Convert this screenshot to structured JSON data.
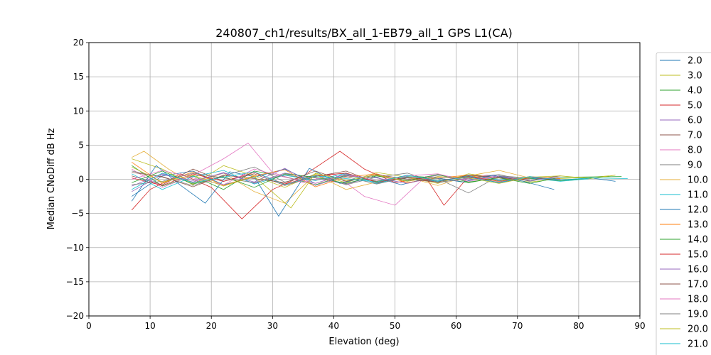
{
  "chart_data": {
    "type": "line",
    "title": "240807_ch1/results/BX_all_1-EB79_all_1 GPS L1(CA)",
    "xlabel": "Elevation (deg)",
    "ylabel": "Median CNoDiff dB Hz",
    "xlim": [
      0,
      90
    ],
    "ylim": [
      -20,
      20
    ],
    "xticks": [
      "0",
      "10",
      "20",
      "30",
      "40",
      "50",
      "60",
      "70",
      "80",
      "90"
    ],
    "yticks": [
      "−20",
      "−15",
      "−10",
      "−5",
      "0",
      "5",
      "10",
      "15",
      "20"
    ],
    "grid": true,
    "legend_placement": "right, outside plot",
    "colors": [
      "#1f77b4",
      "#bcbd22",
      "#2ca02c",
      "#d62728",
      "#9467bd",
      "#8c564b",
      "#e377c2",
      "#7f7f7f",
      "#e5ae38",
      "#17becf",
      "#1f77b4",
      "#ff7f0e",
      "#2ca02c",
      "#d62728",
      "#9467bd",
      "#8c564b",
      "#e377c2",
      "#7f7f7f",
      "#bcbd22",
      "#17becf"
    ],
    "series": [
      {
        "name": "2.0",
        "x": [
          7,
          12,
          17,
          22,
          27,
          32,
          37,
          42,
          47,
          52,
          57,
          62,
          67,
          72,
          77,
          82,
          86
        ],
        "y": [
          -2.5,
          0.5,
          1.2,
          -0.8,
          0.3,
          1.5,
          -0.6,
          0.8,
          -0.4,
          0.2,
          -0.3,
          0.5,
          -0.2,
          0.3,
          -0.1,
          0.2,
          -0.3
        ]
      },
      {
        "name": "3.0",
        "x": [
          7,
          12,
          17,
          22,
          27,
          32,
          37,
          42,
          47,
          52,
          57,
          62,
          67,
          72,
          77,
          82,
          85
        ],
        "y": [
          3.0,
          1.5,
          -0.8,
          2.0,
          0.5,
          -1.2,
          0.8,
          -0.5,
          1.0,
          0.3,
          -0.6,
          0.8,
          0.2,
          -0.4,
          0.1,
          0.3,
          0.5
        ]
      },
      {
        "name": "4.0",
        "x": [
          7,
          12,
          17,
          22,
          27,
          32,
          37,
          42,
          47,
          52,
          57,
          62,
          67,
          72,
          77,
          82
        ],
        "y": [
          2.0,
          -1.0,
          0.5,
          -1.5,
          1.2,
          0.4,
          -0.8,
          0.6,
          -0.3,
          0.5,
          0.2,
          -0.5,
          0.3,
          0.1,
          -0.2,
          0.1
        ]
      },
      {
        "name": "5.0",
        "x": [
          7,
          10,
          15,
          20,
          25,
          30,
          35,
          41,
          45,
          50,
          55,
          58,
          62,
          67,
          72,
          77
        ],
        "y": [
          -4.5,
          -1.5,
          0.8,
          -1.2,
          -5.8,
          -1.5,
          0.5,
          4.1,
          1.5,
          -0.5,
          0.3,
          -3.8,
          0.4,
          -0.3,
          0.2,
          -0.1
        ]
      },
      {
        "name": "6.0",
        "x": [
          7,
          12,
          17,
          22,
          27,
          32,
          37,
          42,
          47,
          52,
          57,
          62,
          67,
          72,
          77
        ],
        "y": [
          -1.0,
          0.8,
          -0.4,
          1.0,
          -0.6,
          0.9,
          0.2,
          -0.7,
          0.5,
          -0.3,
          0.6,
          0.1,
          -0.4,
          0.3,
          0.0
        ]
      },
      {
        "name": "7.0",
        "x": [
          7,
          12,
          17,
          22,
          27,
          32,
          37,
          42,
          47,
          52,
          57,
          62,
          67,
          72,
          77
        ],
        "y": [
          0.5,
          -0.8,
          1.5,
          -0.3,
          0.8,
          -0.9,
          0.4,
          1.2,
          -0.5,
          0.2,
          -0.4,
          0.6,
          0.3,
          -0.2,
          0.5
        ]
      },
      {
        "name": "8.0",
        "x": [
          7,
          12,
          17,
          22,
          26,
          30,
          35,
          40,
          45,
          50,
          55,
          60,
          65,
          70
        ],
        "y": [
          1.5,
          -1.2,
          0.6,
          3.0,
          5.3,
          1.0,
          -0.5,
          0.8,
          -2.5,
          -3.8,
          0.4,
          -0.2,
          0.6,
          0.1
        ]
      },
      {
        "name": "9.0",
        "x": [
          7,
          12,
          17,
          22,
          27,
          32,
          37,
          42,
          47,
          52,
          57,
          62,
          67,
          72,
          76
        ],
        "y": [
          1.2,
          0.3,
          -0.9,
          0.5,
          1.8,
          -0.4,
          0.6,
          -0.8,
          0.3,
          0.9,
          -0.5,
          0.2,
          0.7,
          -0.3,
          0.4
        ]
      },
      {
        "name": "10.0",
        "x": [
          7,
          9,
          13,
          17,
          22,
          27,
          32,
          37,
          42,
          47,
          52,
          57,
          62,
          67,
          72
        ],
        "y": [
          3.2,
          4.1,
          1.5,
          -0.6,
          0.9,
          -1.8,
          -3.5,
          0.7,
          -1.5,
          -0.4,
          0.3,
          -0.9,
          0.5,
          1.3,
          0.2
        ]
      },
      {
        "name": "11.0",
        "x": [
          7,
          12,
          17,
          22,
          27,
          32,
          37,
          42,
          47,
          52,
          57,
          62,
          67,
          72,
          77,
          82
        ],
        "y": [
          0.8,
          -1.5,
          0.4,
          1.3,
          -0.7,
          0.6,
          -0.2,
          0.9,
          -0.6,
          0.4,
          -0.3,
          0.5,
          -0.1,
          0.2,
          -0.3,
          0.1
        ]
      },
      {
        "name": "12.0",
        "x": [
          7,
          11,
          15,
          19,
          23,
          27,
          31,
          36,
          41,
          46,
          51,
          56,
          61,
          66,
          71,
          76
        ],
        "y": [
          -3.2,
          2.0,
          -0.9,
          -3.5,
          1.1,
          0.4,
          -5.4,
          1.6,
          -0.6,
          0.5,
          -0.8,
          0.3,
          -0.4,
          0.6,
          -0.3,
          -1.5
        ]
      },
      {
        "name": "13.0",
        "x": [
          7,
          12,
          17,
          22,
          27,
          32,
          37,
          42,
          47,
          52,
          57,
          62,
          67,
          72,
          77
        ],
        "y": [
          2.5,
          -0.6,
          1.1,
          -0.9,
          0.5,
          1.4,
          -1.1,
          0.3,
          0.8,
          -0.5,
          0.2,
          0.6,
          -0.3,
          0.4,
          0.1
        ]
      },
      {
        "name": "14.0",
        "x": [
          7,
          12,
          17,
          22,
          27,
          32,
          37,
          42,
          47,
          52,
          57,
          62,
          67,
          72,
          77,
          87
        ],
        "y": [
          -0.5,
          1.2,
          -0.7,
          0.4,
          -1.2,
          0.8,
          0.3,
          -0.6,
          0.5,
          -0.2,
          0.7,
          -0.4,
          0.2,
          -0.6,
          0.3,
          0.4
        ]
      },
      {
        "name": "15.0",
        "x": [
          7,
          12,
          17,
          22,
          27,
          32,
          37,
          42,
          47,
          52,
          57,
          62,
          67,
          72
        ],
        "y": [
          0.2,
          -0.9,
          0.8,
          -0.3,
          1.0,
          -0.7,
          0.5,
          0.9,
          -0.4,
          0.3,
          -0.2,
          0.4,
          -0.5,
          0.2
        ]
      },
      {
        "name": "16.0",
        "x": [
          7,
          12,
          17,
          22,
          27,
          32,
          37,
          42,
          47,
          52,
          57,
          62,
          67,
          72,
          77
        ],
        "y": [
          -1.8,
          0.7,
          -0.2,
          0.9,
          -0.4,
          1.6,
          -0.9,
          0.5,
          0.2,
          -0.6,
          0.4,
          -0.1,
          0.5,
          -0.2,
          0.3
        ]
      },
      {
        "name": "17.0",
        "x": [
          7,
          12,
          17,
          22,
          27,
          32,
          37,
          42,
          47,
          52,
          57,
          62,
          67,
          72
        ],
        "y": [
          1.0,
          0.4,
          -1.1,
          0.6,
          0.1,
          -0.5,
          1.2,
          -0.3,
          0.7,
          0.0,
          -0.4,
          0.6,
          0.2,
          -0.1
        ]
      },
      {
        "name": "18.0",
        "x": [
          7,
          12,
          17,
          22,
          27,
          32,
          37,
          42,
          47,
          52,
          57,
          62,
          67
        ],
        "y": [
          0.0,
          1.3,
          0.2,
          -0.8,
          1.5,
          0.3,
          -0.6,
          0.7,
          -0.2,
          0.5,
          0.8,
          -0.3,
          0.4
        ]
      },
      {
        "name": "19.0",
        "x": [
          7,
          12,
          17,
          22,
          27,
          32,
          37,
          42,
          47,
          52,
          57,
          62,
          67,
          72
        ],
        "y": [
          -0.8,
          -0.3,
          0.9,
          0.2,
          -0.5,
          0.7,
          -0.1,
          0.4,
          -0.7,
          0.3,
          0.1,
          -2.0,
          0.5,
          0.2
        ]
      },
      {
        "name": "20.0",
        "x": [
          7,
          12,
          17,
          22,
          27,
          33,
          37,
          42,
          47,
          52,
          57,
          62,
          67,
          72,
          77,
          82,
          86
        ],
        "y": [
          1.8,
          -0.4,
          0.6,
          -1.0,
          0.4,
          -4.2,
          0.9,
          -0.2,
          0.6,
          -0.3,
          0.4,
          0.2,
          -0.6,
          0.3,
          0.5,
          0.1,
          0.6
        ]
      },
      {
        "name": "21.0",
        "x": [
          7,
          12,
          17,
          22,
          27,
          32,
          37,
          42,
          47,
          52,
          57,
          62,
          67,
          72,
          77,
          82,
          88
        ],
        "y": [
          -1.5,
          0.9,
          -0.5,
          0.3,
          1.1,
          -0.8,
          0.5,
          0.1,
          -0.4,
          0.6,
          -0.2,
          0.3,
          -0.5,
          0.4,
          -0.1,
          0.2,
          0.1
        ]
      }
    ]
  }
}
